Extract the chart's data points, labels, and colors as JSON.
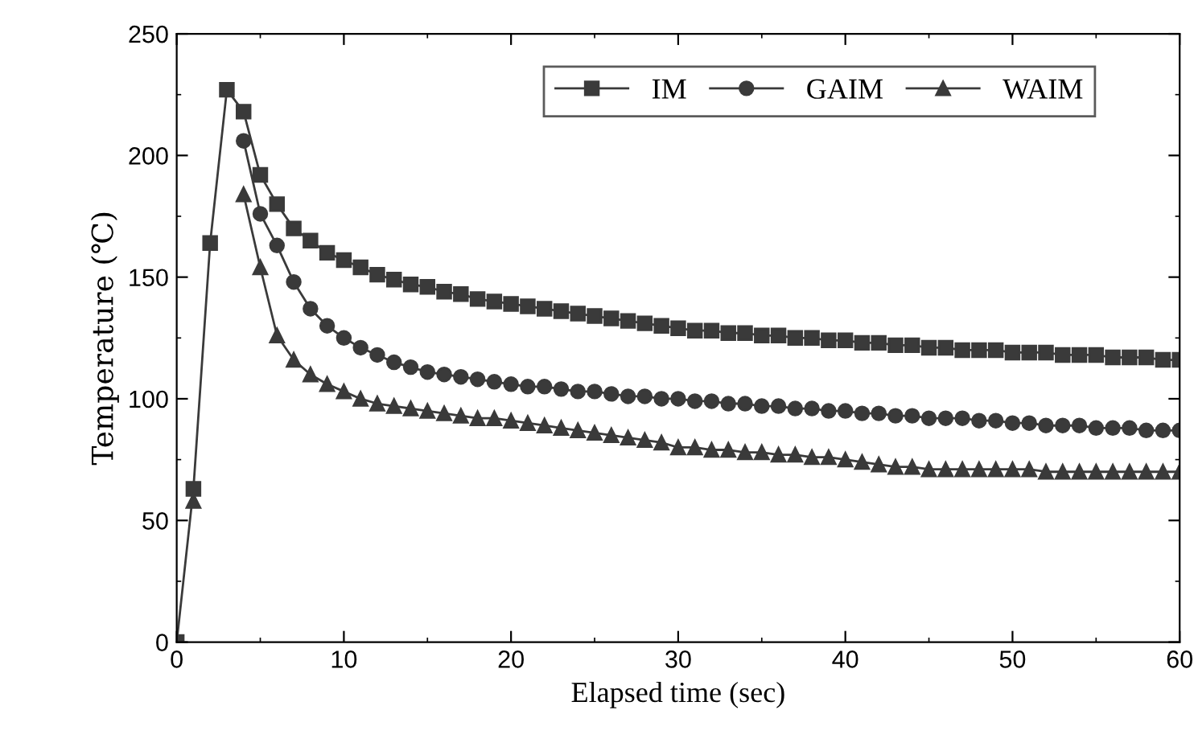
{
  "chart_data": {
    "type": "line",
    "xlabel": "Elapsed time (sec)",
    "ylabel": "Temperature (℃)",
    "x": [
      0,
      1,
      2,
      3,
      4,
      5,
      6,
      7,
      8,
      9,
      10,
      11,
      12,
      13,
      14,
      15,
      16,
      17,
      18,
      19,
      20,
      21,
      22,
      23,
      24,
      25,
      26,
      27,
      28,
      29,
      30,
      31,
      32,
      33,
      34,
      35,
      36,
      37,
      38,
      39,
      40,
      41,
      42,
      43,
      44,
      45,
      46,
      47,
      48,
      49,
      50,
      51,
      52,
      53,
      54,
      55,
      56,
      57,
      58,
      59,
      60
    ],
    "series": [
      {
        "name": "IM",
        "color": "#3a3a3a",
        "marker": "square",
        "values": [
          0,
          63,
          164,
          227,
          218,
          192,
          180,
          170,
          165,
          160,
          157,
          154,
          151,
          149,
          147,
          146,
          144,
          143,
          141,
          140,
          139,
          138,
          137,
          136,
          135,
          134,
          133,
          132,
          131,
          130,
          129,
          128,
          128,
          127,
          127,
          126,
          126,
          125,
          125,
          124,
          124,
          123,
          123,
          122,
          122,
          121,
          121,
          120,
          120,
          120,
          119,
          119,
          119,
          118,
          118,
          118,
          117,
          117,
          117,
          116,
          116
        ]
      },
      {
        "name": "GAIM",
        "color": "#3a3a3a",
        "marker": "circle",
        "values": [
          null,
          null,
          null,
          null,
          206,
          176,
          163,
          148,
          137,
          130,
          125,
          121,
          118,
          115,
          113,
          111,
          110,
          109,
          108,
          107,
          106,
          105,
          105,
          104,
          103,
          103,
          102,
          101,
          101,
          100,
          100,
          99,
          99,
          98,
          98,
          97,
          97,
          96,
          96,
          95,
          95,
          94,
          94,
          93,
          93,
          92,
          92,
          92,
          91,
          91,
          90,
          90,
          89,
          89,
          89,
          88,
          88,
          88,
          87,
          87,
          87
        ]
      },
      {
        "name": "WAIM",
        "color": "#3a3a3a",
        "marker": "triangle",
        "values": [
          null,
          58,
          null,
          null,
          184,
          154,
          126,
          116,
          110,
          106,
          103,
          100,
          98,
          97,
          96,
          95,
          94,
          93,
          92,
          92,
          91,
          90,
          89,
          88,
          87,
          86,
          85,
          84,
          83,
          82,
          80,
          80,
          79,
          79,
          78,
          78,
          77,
          77,
          76,
          76,
          75,
          74,
          73,
          72,
          72,
          71,
          71,
          71,
          71,
          71,
          71,
          71,
          70,
          70,
          70,
          70,
          70,
          70,
          70,
          70,
          70
        ]
      }
    ],
    "xlim": [
      0,
      60
    ],
    "xticks": [
      0,
      10,
      20,
      30,
      40,
      50,
      60
    ],
    "ylim": [
      0,
      250
    ],
    "yticks": [
      0,
      50,
      100,
      150,
      200,
      250
    ],
    "grid": false,
    "legend": "top right",
    "line_style": "solid"
  }
}
